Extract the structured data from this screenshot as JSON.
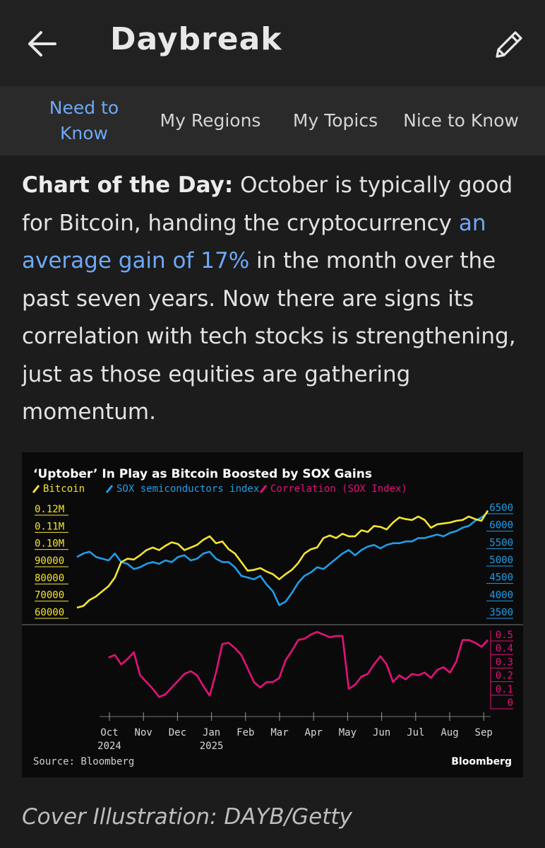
{
  "header": {
    "back_icon": "back-arrow-icon",
    "title": "Daybreak",
    "edit_icon": "pencil-icon"
  },
  "tabs": [
    {
      "label": "Need to Know",
      "active": true
    },
    {
      "label": "My Regions",
      "active": false
    },
    {
      "label": "My Topics",
      "active": false
    },
    {
      "label": "Nice to Know",
      "active": false
    }
  ],
  "article": {
    "lead": "Chart of the Day:",
    "text_1": " October is typically good for Bitcoin, handing the cryptocurrency ",
    "link": "an average gain of 17%",
    "text_2": " in the month over the past seven years. Now there are signs its correlation with tech stocks is strengthening, just as those equities are gathering momentum."
  },
  "chart_data": {
    "type": "line",
    "title": "‘Uptober’ In Play as Bitcoin Boosted by SOX Gains",
    "source": "Source: Bloomberg",
    "brand": "Bloomberg",
    "colors": {
      "bitcoin": "#f5e431",
      "sox": "#1f9ee8",
      "correlation": "#e3127a",
      "grid": "#555555"
    },
    "x_ticks": [
      {
        "label": "Oct",
        "sub": "2024"
      },
      {
        "label": "Nov",
        "sub": ""
      },
      {
        "label": "Dec",
        "sub": ""
      },
      {
        "label": "Jan",
        "sub": "2025"
      },
      {
        "label": "Feb",
        "sub": ""
      },
      {
        "label": "Mar",
        "sub": ""
      },
      {
        "label": "Apr",
        "sub": ""
      },
      {
        "label": "May",
        "sub": ""
      },
      {
        "label": "Jun",
        "sub": ""
      },
      {
        "label": "Jul",
        "sub": ""
      },
      {
        "label": "Aug",
        "sub": ""
      },
      {
        "label": "Sep",
        "sub": ""
      }
    ],
    "top_panel": {
      "left_axis_ticks": [
        "0.12M",
        "0.11M",
        "0.10M",
        "90000",
        "80000",
        "70000",
        "60000"
      ],
      "left_ylim": [
        60000,
        120000
      ],
      "right_axis_ticks": [
        "6500",
        "6000",
        "5500",
        "5000",
        "4500",
        "4000",
        "3500"
      ],
      "right_ylim": [
        3500,
        6500
      ]
    },
    "bottom_panel": {
      "right_axis_ticks": [
        "0.5",
        "0.4",
        "0.3",
        "0.2",
        "0.1",
        "0"
      ],
      "ylim": [
        0,
        0.5
      ]
    },
    "series": [
      {
        "name": "Bitcoin",
        "axis": "left",
        "values": [
          62500,
          63500,
          67000,
          69000,
          72000,
          75000,
          80000,
          89000,
          91000,
          90500,
          93000,
          96000,
          97500,
          96000,
          98500,
          100500,
          99500,
          96000,
          97500,
          99000,
          102000,
          104000,
          100000,
          101000,
          96500,
          94000,
          89000,
          84000,
          84500,
          85500,
          83500,
          82000,
          79000,
          82000,
          84500,
          88500,
          94000,
          96500,
          97500,
          103000,
          104500,
          103000,
          105500,
          104000,
          104000,
          107500,
          106500,
          110000,
          109500,
          108000,
          112000,
          115000,
          114000,
          113500,
          115500,
          113500,
          109000,
          111000,
          111500,
          112000,
          113000,
          113500,
          115500,
          114000,
          113000,
          119000
        ]
      },
      {
        "name": "SOX semiconductors index",
        "axis": "right",
        "values": [
          5100,
          5200,
          5250,
          5100,
          5050,
          5000,
          5200,
          4950,
          4900,
          4750,
          4800,
          4900,
          4950,
          4900,
          5000,
          4950,
          5100,
          5150,
          5000,
          5050,
          5200,
          5250,
          5050,
          4950,
          4950,
          4800,
          4550,
          4500,
          4450,
          4550,
          4300,
          4100,
          3700,
          3800,
          4050,
          4350,
          4550,
          4650,
          4800,
          4750,
          4900,
          5050,
          5200,
          5300,
          5150,
          5300,
          5400,
          5450,
          5350,
          5450,
          5500,
          5500,
          5550,
          5550,
          5650,
          5650,
          5700,
          5750,
          5700,
          5800,
          5850,
          5950,
          6000,
          6150,
          6250,
          6400
        ]
      },
      {
        "name": "Correlation (SOX Index)",
        "axis": "bottom",
        "values": [
          null,
          null,
          null,
          null,
          null,
          0.33,
          0.35,
          0.28,
          0.32,
          0.37,
          0.2,
          0.15,
          0.1,
          0.04,
          0.06,
          0.11,
          0.16,
          0.21,
          0.23,
          0.2,
          0.12,
          0.05,
          0.22,
          0.43,
          0.44,
          0.4,
          0.35,
          0.25,
          0.15,
          0.11,
          0.15,
          0.15,
          0.18,
          0.31,
          0.38,
          0.46,
          0.47,
          0.5,
          0.52,
          0.5,
          0.48,
          0.49,
          0.49,
          0.1,
          0.13,
          0.19,
          0.21,
          0.28,
          0.34,
          0.28,
          0.15,
          0.2,
          0.17,
          0.21,
          0.2,
          0.22,
          0.18,
          0.24,
          0.26,
          0.22,
          0.3,
          0.46,
          0.46,
          0.44,
          0.41,
          0.46
        ]
      }
    ]
  },
  "caption": "Cover Illustration: DAYB/Getty"
}
